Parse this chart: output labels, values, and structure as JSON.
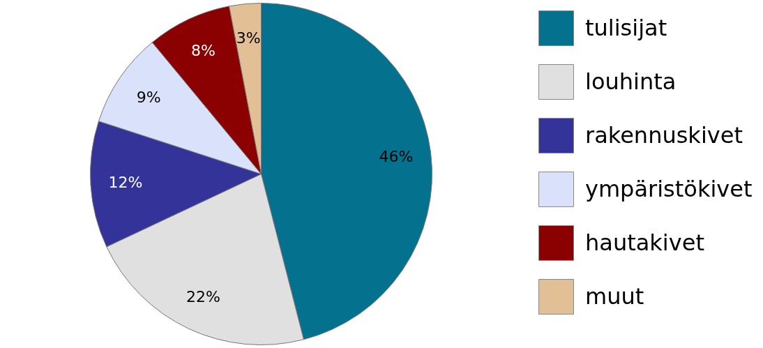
{
  "chart_data": {
    "type": "pie",
    "categories": [
      "tulisijat",
      "louhinta",
      "rakennuskivet",
      "ympäristökivet",
      "hautakivet",
      "muut"
    ],
    "values": [
      46,
      22,
      12,
      9,
      8,
      3
    ],
    "colors": [
      "#04728f",
      "#e0e0e0",
      "#333399",
      "#d9e1fb",
      "#8b0000",
      "#e2bf94"
    ],
    "value_labels": [
      "46%",
      "22%",
      "12%",
      "9%",
      "8%",
      "3%"
    ],
    "legend": "right"
  }
}
